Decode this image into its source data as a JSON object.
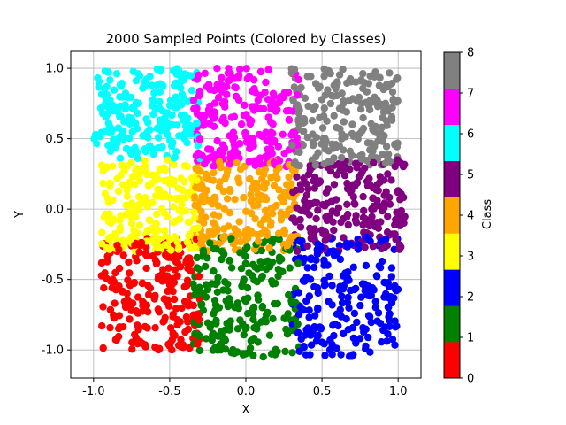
{
  "chart_data": {
    "type": "scatter",
    "title": "2000 Sampled Points (Colored by Classes)",
    "xlabel": "X",
    "ylabel": "Y",
    "xlim": [
      -1.15,
      1.15
    ],
    "ylim": [
      -1.2,
      1.12
    ],
    "xticks": [
      "-1.0",
      "-0.5",
      "0.0",
      "0.5",
      "1.0"
    ],
    "xtick_values": [
      -1.0,
      -0.5,
      0.0,
      0.5,
      1.0
    ],
    "yticks": [
      "-1.0",
      "-0.5",
      "0.0",
      "0.5",
      "1.0"
    ],
    "ytick_values": [
      -1.0,
      -0.5,
      0.0,
      0.5,
      1.0
    ],
    "grid": true,
    "point_count": 2000,
    "classes": [
      {
        "class": 0,
        "color": "#ff0000",
        "x_range": [
          -0.95,
          -0.3
        ],
        "y_range": [
          -1.0,
          -0.2
        ]
      },
      {
        "class": 1,
        "color": "#008000",
        "x_range": [
          -0.35,
          0.35
        ],
        "y_range": [
          -1.05,
          -0.2
        ]
      },
      {
        "class": 2,
        "color": "#0000ff",
        "x_range": [
          0.3,
          1.0
        ],
        "y_range": [
          -1.05,
          -0.2
        ]
      },
      {
        "class": 3,
        "color": "#ffff00",
        "x_range": [
          -0.95,
          -0.3
        ],
        "y_range": [
          -0.3,
          0.35
        ]
      },
      {
        "class": 4,
        "color": "#ffa500",
        "x_range": [
          -0.35,
          0.35
        ],
        "y_range": [
          -0.3,
          0.35
        ]
      },
      {
        "class": 5,
        "color": "#800080",
        "x_range": [
          0.3,
          1.05
        ],
        "y_range": [
          -0.3,
          0.35
        ]
      },
      {
        "class": 6,
        "color": "#00ffff",
        "x_range": [
          -1.0,
          -0.3
        ],
        "y_range": [
          0.35,
          1.0
        ]
      },
      {
        "class": 7,
        "color": "#ff00ff",
        "x_range": [
          -0.35,
          0.35
        ],
        "y_range": [
          0.3,
          1.0
        ]
      },
      {
        "class": 8,
        "color": "#808080",
        "x_range": [
          0.3,
          1.0
        ],
        "y_range": [
          0.3,
          1.0
        ]
      }
    ],
    "colorbar": {
      "label": "Class",
      "ticks": [
        "0",
        "1",
        "2",
        "3",
        "4",
        "5",
        "6",
        "7",
        "8"
      ],
      "tick_values": [
        0,
        1,
        2,
        3,
        4,
        5,
        6,
        7,
        8
      ]
    }
  }
}
